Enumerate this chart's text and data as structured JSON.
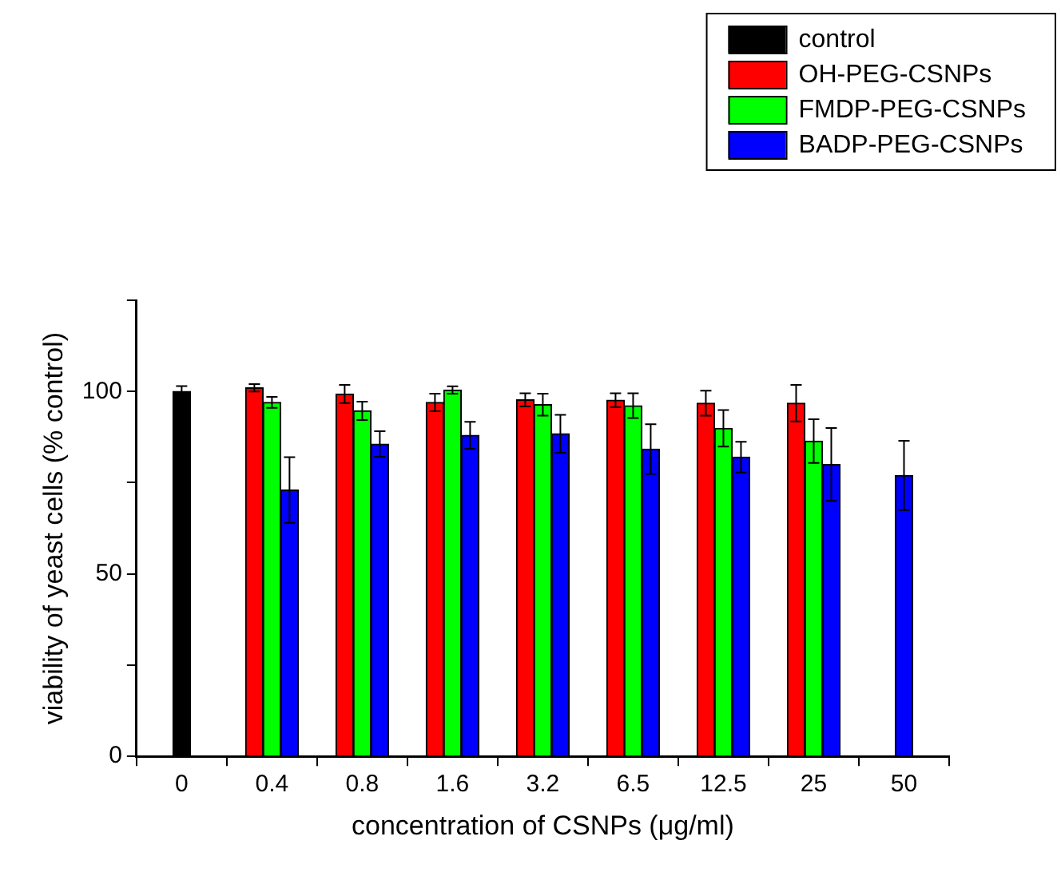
{
  "chart_data": {
    "type": "bar",
    "xlabel": "concentration of CSNPs (μg/ml)",
    "ylabel": "viability of yeast cells (% control)",
    "categories": [
      "0",
      "0.4",
      "0.8",
      "1.6",
      "3.2",
      "6.5",
      "12.5",
      "25",
      "50"
    ],
    "series": [
      {
        "name": "control",
        "color": "#000000",
        "values": [
          100,
          null,
          null,
          null,
          null,
          null,
          null,
          null,
          null
        ],
        "errors": [
          1.5,
          null,
          null,
          null,
          null,
          null,
          null,
          null,
          null
        ]
      },
      {
        "name": "OH-PEG-CSNPs",
        "color": "#ff0000",
        "values": [
          null,
          101,
          99.3,
          97,
          97.7,
          97.6,
          96.8,
          96.8,
          null
        ],
        "errors": [
          null,
          1,
          2.5,
          2.4,
          1.8,
          1.9,
          3.4,
          5,
          null
        ]
      },
      {
        "name": "FMDP-PEG-CSNPs",
        "color": "#00ff00",
        "values": [
          null,
          97,
          94.7,
          100.4,
          96.4,
          96.1,
          89.9,
          86.4,
          null
        ],
        "errors": [
          null,
          1.5,
          2.5,
          1,
          3,
          3.4,
          5,
          6,
          null
        ]
      },
      {
        "name": "BADP-PEG-CSNPs",
        "color": "#0000ff",
        "values": [
          null,
          73,
          85.6,
          88,
          88.4,
          84.2,
          82,
          80,
          77
        ],
        "errors": [
          null,
          9,
          3.5,
          3.7,
          5.2,
          6.8,
          4.2,
          10,
          9.5
        ]
      }
    ],
    "ylim": [
      0,
      125
    ],
    "yticks": [
      0,
      {
        "value": 25,
        "label": null
      },
      50,
      {
        "value": 75,
        "label": null
      },
      100,
      {
        "value": 125,
        "label": null
      }
    ],
    "grid": false,
    "legend": "top right"
  }
}
